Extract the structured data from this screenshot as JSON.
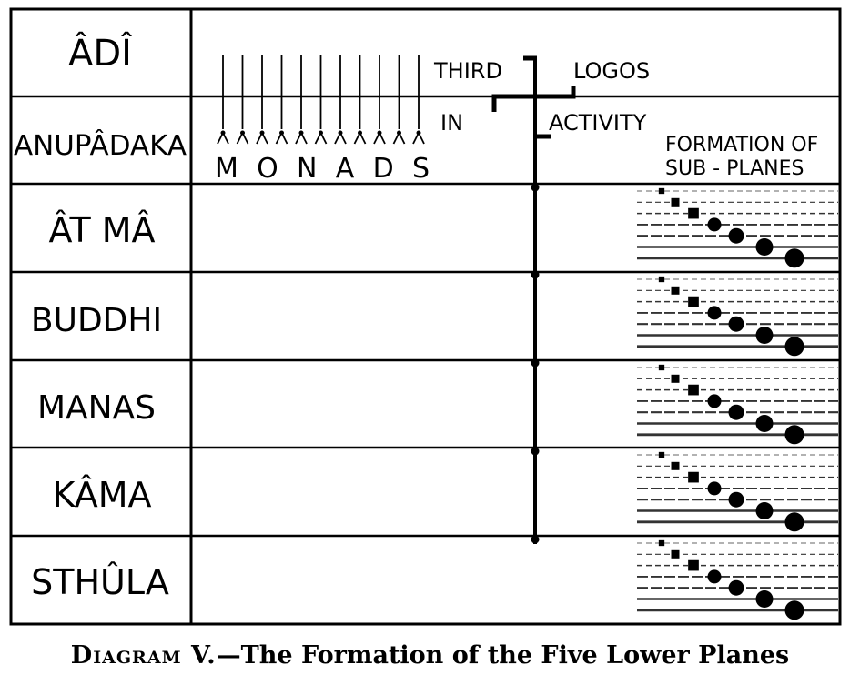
{
  "planes": [
    {
      "name": "ÂDÎ"
    },
    {
      "name": "ANUPÂDAKA"
    },
    {
      "name": "ÂT MÂ"
    },
    {
      "name": "BUDDHI"
    },
    {
      "name": "MANAS"
    },
    {
      "name": "KÂMA"
    },
    {
      "name": "STHÛLA"
    }
  ],
  "monads": {
    "label": "MONADS",
    "count": 11
  },
  "logos": {
    "third": "THIRD",
    "logos": "LOGOS",
    "in": "IN",
    "activity": "ACTIVITY"
  },
  "subplanes": {
    "title_line1": "FORMATION OF",
    "title_line2": "SUB - PLANES",
    "per_plane": 7
  },
  "caption": {
    "lead": "Diagram V.",
    "rest": "—The Formation of the Five Lower Planes"
  }
}
